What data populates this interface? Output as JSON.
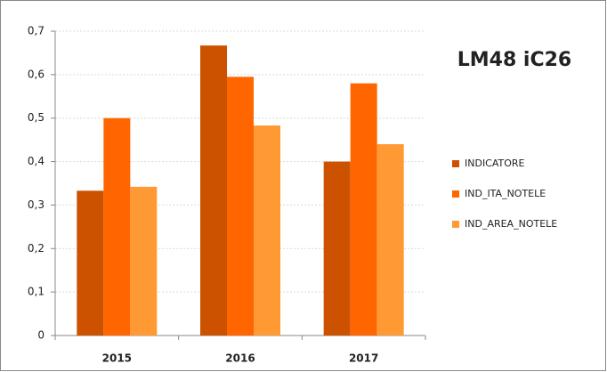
{
  "chart_data": {
    "type": "bar",
    "title": "LM48 iC26",
    "categories": [
      "2015",
      "2016",
      "2017"
    ],
    "series": [
      {
        "name": "INDICATORE",
        "color": "#cc5200",
        "values": [
          0.333,
          0.667,
          0.4
        ]
      },
      {
        "name": "IND_ITA_NOTELE",
        "color": "#ff6600",
        "values": [
          0.5,
          0.595,
          0.58
        ]
      },
      {
        "name": "IND_AREA_NOTELE",
        "color": "#ff9933",
        "values": [
          0.342,
          0.483,
          0.44
        ]
      }
    ],
    "ylim": [
      0,
      0.7
    ],
    "yticks": [
      0,
      {
        "value": 0.1,
        "label": "0,1"
      },
      {
        "value": 0.2,
        "label": "0,2"
      },
      {
        "value": 0.3,
        "label": "0,3"
      },
      {
        "value": 0.4,
        "label": "0,4"
      },
      {
        "value": 0.5,
        "label": "0,5"
      },
      {
        "value": 0.6,
        "label": "0,6"
      },
      {
        "value": 0.7,
        "label": "0,7"
      }
    ],
    "grid": true,
    "legend": "right"
  }
}
